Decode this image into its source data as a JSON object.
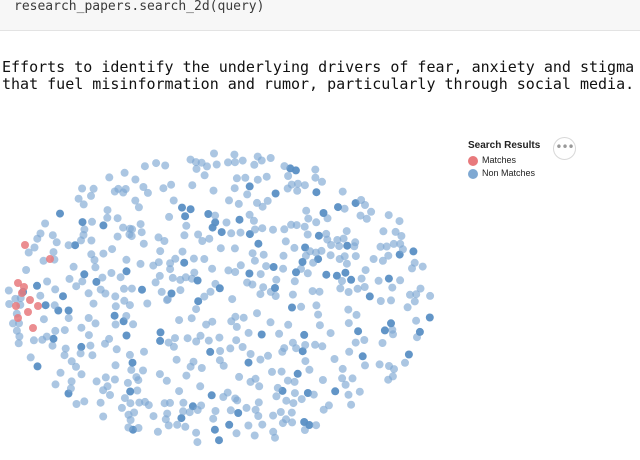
{
  "code_cell": {
    "code": "research_papers.search_2d(query)"
  },
  "output": {
    "query_line_1": "Efforts to identify the underlying drivers of fear, anxiety and stigma",
    "query_line_2": "that fuel misinformation and rumor, particularly through social media."
  },
  "legend": {
    "title": "Search Results",
    "items": [
      {
        "label": "Matches",
        "color": "#e8797c"
      },
      {
        "label": "Non Matches",
        "color": "#7ea8d2"
      }
    ]
  },
  "toolbar": {
    "more_button_icon": "more-horizontal-icon",
    "more_label": "•••"
  },
  "colors": {
    "match": "#e8797c",
    "non_match": "#7ea8d2",
    "background": "#ffffff"
  }
}
